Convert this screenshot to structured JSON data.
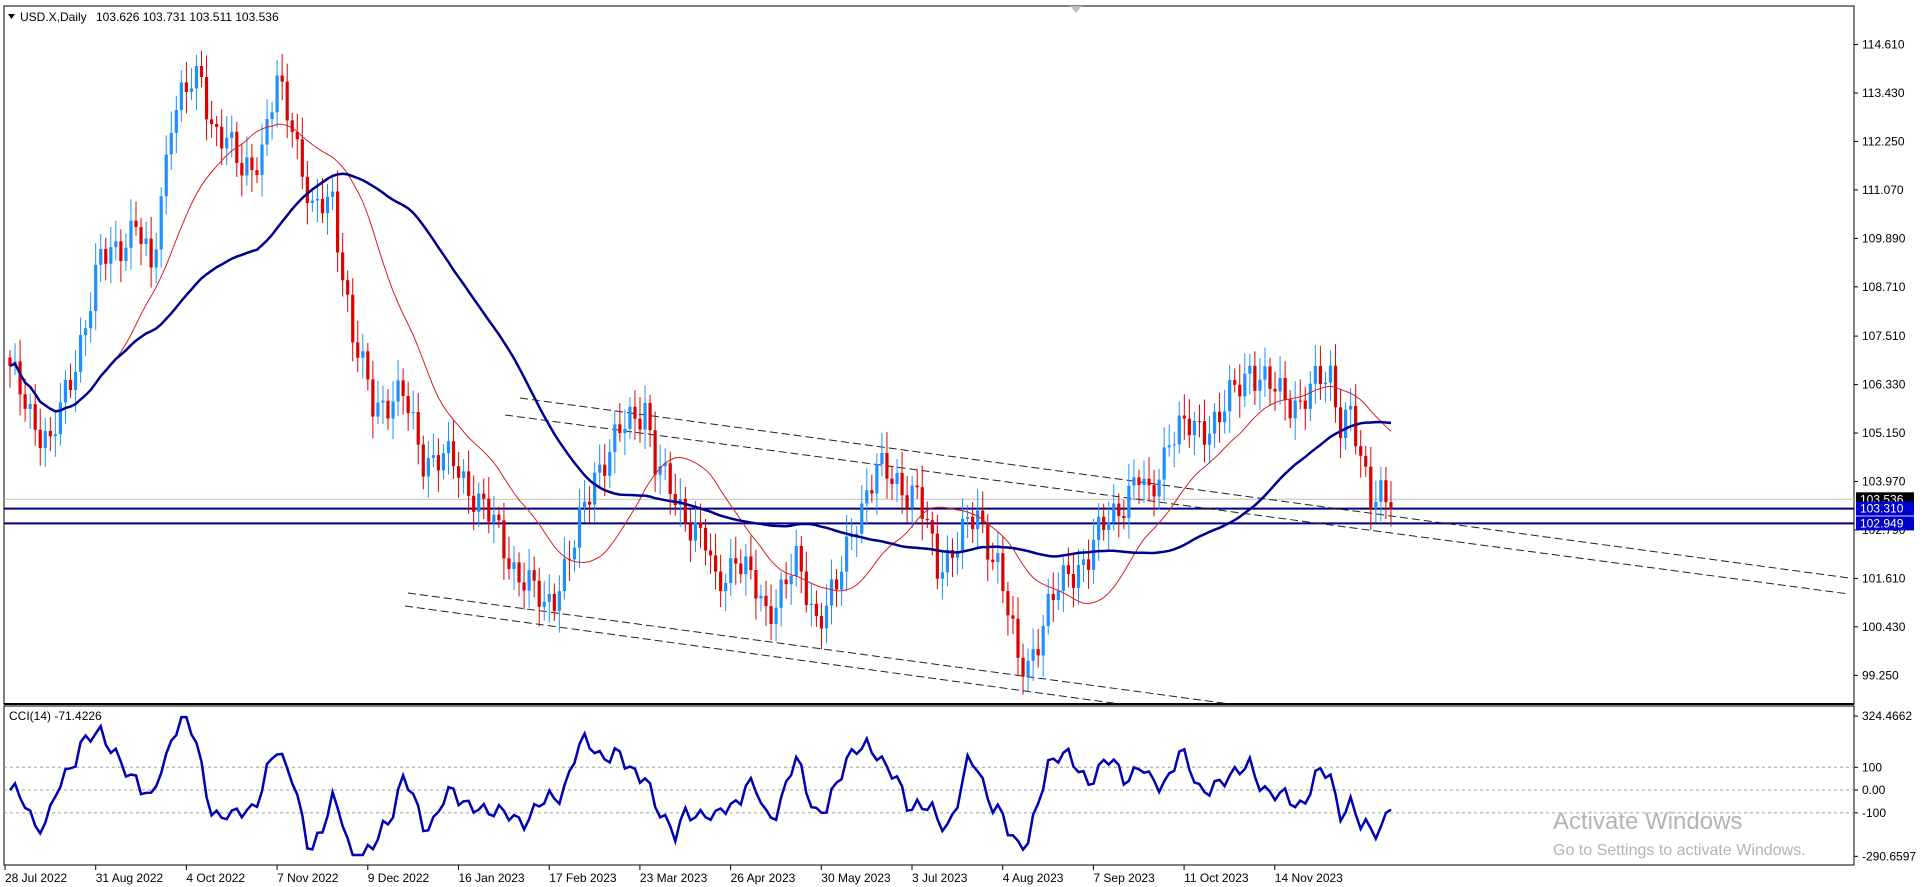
{
  "header": {
    "symbol_info": "USD.X,Daily",
    "ohlc": "103.626 103.731 103.511 103.536",
    "indicator": "CCI(14) -71.4226"
  },
  "price_axis": {
    "min": 98.6,
    "max": 115.5,
    "ticks": [
      "114.610",
      "113.430",
      "112.250",
      "111.070",
      "109.890",
      "108.710",
      "107.510",
      "106.330",
      "105.150",
      "103.970",
      "102.790",
      "101.610",
      "100.430",
      "99.250"
    ],
    "labels": [
      {
        "text": "103.536",
        "value": 103.536,
        "bg": "#000000",
        "fg": "#ffffff"
      },
      {
        "text": "103.310",
        "value": 103.31,
        "bg": "#0000cc",
        "fg": "#ffffff"
      },
      {
        "text": "102.949",
        "value": 102.949,
        "bg": "#0000cc",
        "fg": "#ffffff"
      }
    ]
  },
  "cci_axis": {
    "min": -320,
    "max": 360,
    "ticks": [
      {
        "text": "324.4662",
        "value": 324.4662
      },
      {
        "text": "100",
        "value": 100
      },
      {
        "text": "0.00",
        "value": 0
      },
      {
        "text": "-100",
        "value": -100
      },
      {
        "text": "-290.6597",
        "value": -290.6597
      }
    ],
    "levels": [
      100,
      0,
      -100
    ]
  },
  "time_axis": [
    "28 Jul 2022",
    "31 Aug 2022",
    "4 Oct 2022",
    "7 Nov 2022",
    "9 Dec 2022",
    "16 Jan 2023",
    "17 Feb 2023",
    "23 Mar 2023",
    "26 Apr 2023",
    "30 May 2023",
    "3 Jul 2023",
    "4 Aug 2023",
    "7 Sep 2023",
    "11 Oct 2023",
    "14 Nov 2023"
  ],
  "horizontal_lines": [
    {
      "value": 103.31,
      "color": "#000080"
    },
    {
      "value": 102.949,
      "color": "#000080"
    },
    {
      "value": 103.536,
      "color": "#c0c0c0"
    }
  ],
  "colors": {
    "bull": "#1e90ff",
    "bear": "#dd0000",
    "ma_fast": "#d22020",
    "ma_slow": "#00008b",
    "cci": "#0000b4",
    "trend": "#222222",
    "grid_border": "#000000"
  },
  "chart_data": {
    "type": "candlestick",
    "title": "USD.X,Daily",
    "ylim": [
      98.6,
      115.5
    ],
    "price_path": [
      [
        0,
        106.6
      ],
      [
        8,
        104.8
      ],
      [
        12,
        106.5
      ],
      [
        18,
        109.3
      ],
      [
        25,
        110.2
      ],
      [
        28,
        109.0
      ],
      [
        32,
        112.9
      ],
      [
        38,
        113.9
      ],
      [
        40,
        112.7
      ],
      [
        46,
        111.6
      ],
      [
        50,
        112.0
      ],
      [
        53,
        113.6
      ],
      [
        56,
        112.8
      ],
      [
        60,
        110.4
      ],
      [
        64,
        110.9
      ],
      [
        68,
        107.4
      ],
      [
        72,
        105.9
      ],
      [
        78,
        106.0
      ],
      [
        82,
        104.6
      ],
      [
        88,
        104.4
      ],
      [
        92,
        103.7
      ],
      [
        96,
        102.9
      ],
      [
        100,
        101.9
      ],
      [
        106,
        100.9
      ],
      [
        108,
        101.3
      ],
      [
        112,
        102.4
      ],
      [
        116,
        104.2
      ],
      [
        121,
        105.1
      ],
      [
        126,
        105.9
      ],
      [
        128,
        104.4
      ],
      [
        130,
        103.9
      ],
      [
        134,
        103.2
      ],
      [
        138,
        102.4
      ],
      [
        140,
        101.4
      ],
      [
        144,
        102.2
      ],
      [
        150,
        100.8
      ],
      [
        156,
        101.9
      ],
      [
        160,
        100.7
      ],
      [
        164,
        101.3
      ],
      [
        168,
        103.2
      ],
      [
        172,
        104.2
      ],
      [
        176,
        104.0
      ],
      [
        180,
        103.6
      ],
      [
        184,
        101.9
      ],
      [
        188,
        102.5
      ],
      [
        192,
        103.1
      ],
      [
        196,
        102.0
      ],
      [
        200,
        99.5
      ],
      [
        202,
        99.6
      ],
      [
        206,
        100.8
      ],
      [
        210,
        101.8
      ],
      [
        214,
        102.1
      ],
      [
        218,
        103.1
      ],
      [
        224,
        104.0
      ],
      [
        226,
        103.5
      ],
      [
        230,
        105.1
      ],
      [
        236,
        105.3
      ],
      [
        240,
        105.5
      ],
      [
        246,
        106.8
      ],
      [
        250,
        106.2
      ],
      [
        256,
        105.9
      ],
      [
        260,
        106.4
      ],
      [
        262,
        106.6
      ],
      [
        264,
        105.5
      ],
      [
        266,
        105.6
      ],
      [
        268,
        104.3
      ],
      [
        270,
        103.6
      ],
      [
        272,
        103.9
      ],
      [
        274,
        103.55
      ]
    ]
  }
}
